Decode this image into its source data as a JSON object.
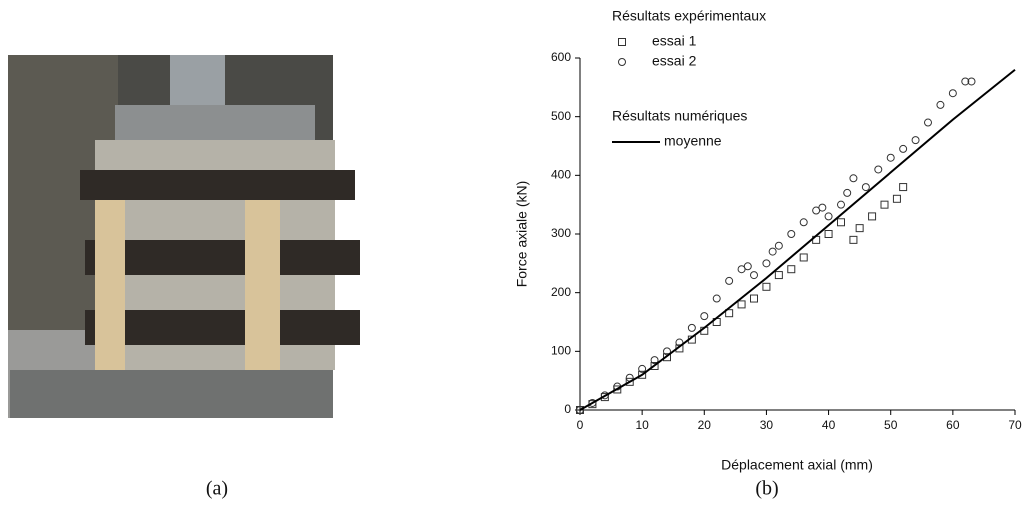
{
  "chart_data": {
    "type": "scatter",
    "xlabel": "Déplacement axial (mm)",
    "ylabel": "Force axiale (kN)",
    "xlim": [
      0,
      70
    ],
    "xticks": [
      0,
      10,
      20,
      30,
      40,
      50,
      60,
      70
    ],
    "ylim": [
      0,
      600
    ],
    "yticks": [
      0,
      100,
      200,
      300,
      400,
      500,
      600
    ],
    "legend_groups": [
      "Résultats expérimentaux",
      "Résultats numériques"
    ],
    "series": [
      {
        "name": "essai 1",
        "marker": "square",
        "color": "#333333",
        "x": [
          0,
          2,
          4,
          6,
          8,
          10,
          12,
          14,
          16,
          18,
          20,
          22,
          24,
          26,
          28,
          30,
          32,
          34,
          36,
          38,
          40,
          42,
          44,
          45,
          47,
          49,
          51,
          52
        ],
        "values": [
          0,
          10,
          22,
          35,
          48,
          60,
          75,
          90,
          105,
          120,
          135,
          150,
          165,
          180,
          190,
          210,
          230,
          240,
          260,
          290,
          300,
          320,
          290,
          310,
          330,
          350,
          360,
          380
        ]
      },
      {
        "name": "essai 2",
        "marker": "circle",
        "color": "#333333",
        "x": [
          0,
          2,
          4,
          6,
          8,
          10,
          12,
          14,
          16,
          18,
          20,
          22,
          24,
          26,
          27,
          28,
          30,
          31,
          32,
          34,
          36,
          38,
          39,
          40,
          42,
          43,
          44,
          46,
          48,
          50,
          52,
          54,
          56,
          58,
          60,
          62,
          63
        ],
        "values": [
          0,
          12,
          25,
          40,
          55,
          70,
          85,
          100,
          115,
          140,
          160,
          190,
          220,
          240,
          245,
          230,
          250,
          270,
          280,
          300,
          320,
          340,
          345,
          330,
          350,
          370,
          395,
          380,
          410,
          430,
          445,
          460,
          490,
          520,
          540,
          560,
          560
        ]
      },
      {
        "name": "moyenne",
        "marker": "line",
        "color": "#000000",
        "x": [
          0,
          10,
          20,
          30,
          40,
          50,
          60,
          70
        ],
        "values": [
          0,
          60,
          140,
          225,
          315,
          405,
          495,
          580
        ]
      }
    ]
  },
  "captions": [
    "(a)",
    "(b)"
  ]
}
